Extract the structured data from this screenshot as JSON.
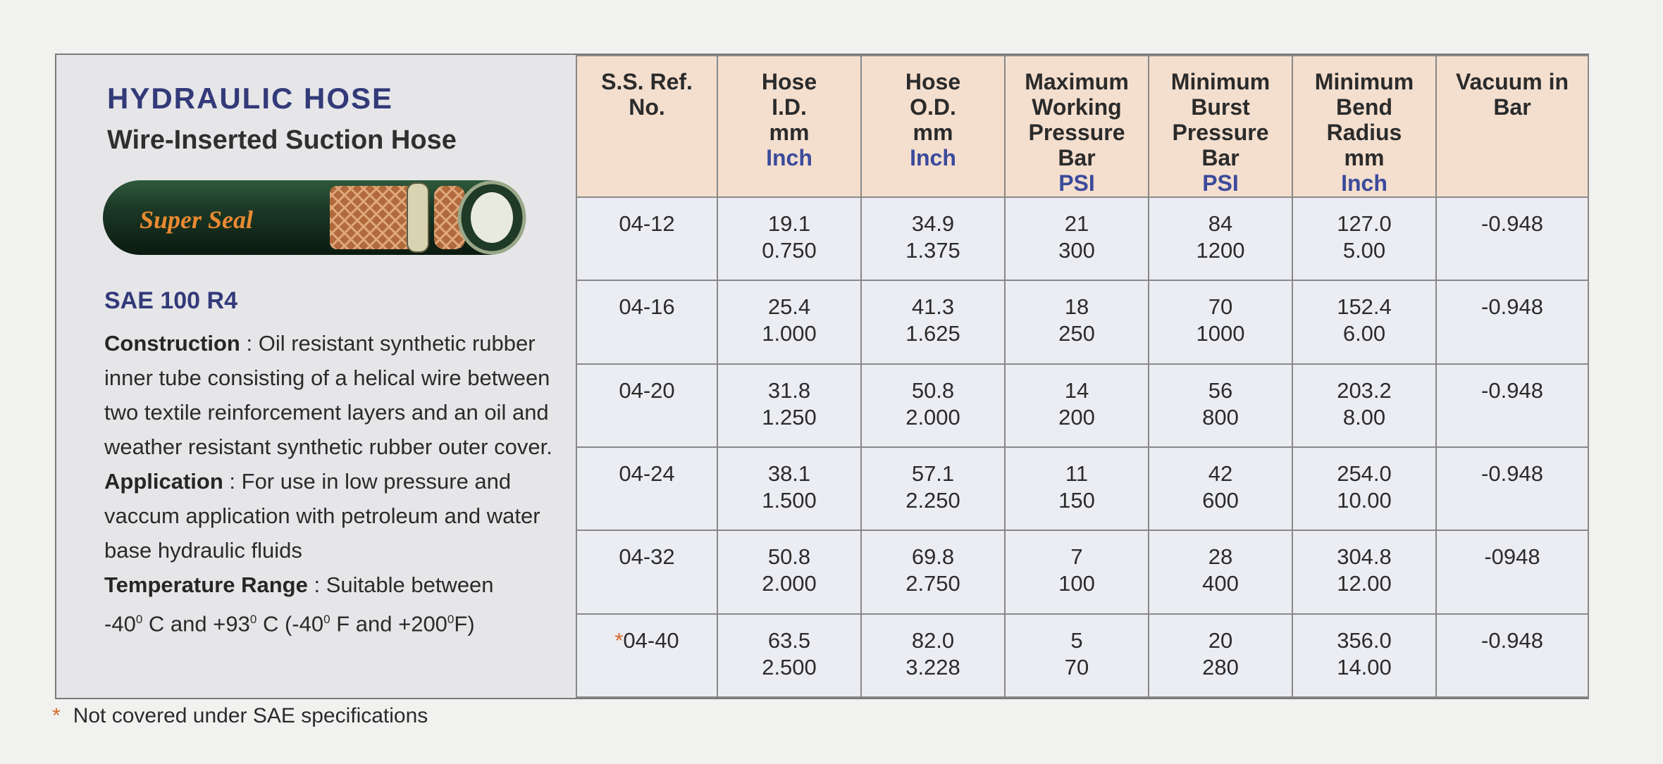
{
  "header": {
    "title": "HYDRAULIC HOSE",
    "subtitle": "Wire-Inserted Suction Hose",
    "brand": "Super Seal"
  },
  "spec": {
    "standard": "SAE 100 R4",
    "construction_label": "Construction",
    "construction_text": ": Oil resistant synthetic rubber inner tube consisting of a helical wire between two textile reinforcement layers and an oil and weather resistant synthetic rubber outer cover.",
    "application_label": "Application",
    "application_text": ": For use in low pressure and vaccum application with petroleum and water base hydraulic fluids",
    "temperature_label": "Temperature Range",
    "temperature_text": ": Suitable between",
    "temp_c_low": "-40",
    "temp_c_low_unit": "C and",
    "temp_c_high": "+93",
    "temp_c_high_unit": "C (",
    "temp_f_low": "-40",
    "temp_f_low_unit": "F and",
    "temp_f_high": "+200",
    "temp_f_high_unit": "F)",
    "degree": "0"
  },
  "table": {
    "columns": [
      {
        "line1": "S.S. Ref.",
        "line2": "No.",
        "unit": ""
      },
      {
        "line1": "Hose",
        "line2": "I.D.",
        "line3": "mm",
        "unit": "Inch"
      },
      {
        "line1": "Hose",
        "line2": "O.D.",
        "line3": "mm",
        "unit": "Inch"
      },
      {
        "line1": "Maximum",
        "line2": "Working",
        "line3": "Pressure",
        "line4": "Bar",
        "unit": "PSI"
      },
      {
        "line1": "Minimum",
        "line2": "Burst",
        "line3": "Pressure",
        "line4": "Bar",
        "unit": "PSI"
      },
      {
        "line1": "Minimum",
        "line2": "Bend",
        "line3": "Radius",
        "line4": "mm",
        "unit": "Inch"
      },
      {
        "line1": "Vacuum in",
        "line2": "Bar",
        "unit": ""
      }
    ],
    "rows": [
      {
        "ref": "04-12",
        "star": "",
        "id_mm": "19.1",
        "id_in": "0.750",
        "od_mm": "34.9",
        "od_in": "1.375",
        "wp_bar": "21",
        "wp_psi": "300",
        "bp_bar": "84",
        "bp_psi": "1200",
        "br_mm": "127.0",
        "br_in": "5.00",
        "vac": "-0.948"
      },
      {
        "ref": "04-16",
        "star": "",
        "id_mm": "25.4",
        "id_in": "1.000",
        "od_mm": "41.3",
        "od_in": "1.625",
        "wp_bar": "18",
        "wp_psi": "250",
        "bp_bar": "70",
        "bp_psi": "1000",
        "br_mm": "152.4",
        "br_in": "6.00",
        "vac": "-0.948"
      },
      {
        "ref": "04-20",
        "star": "",
        "id_mm": "31.8",
        "id_in": "1.250",
        "od_mm": "50.8",
        "od_in": "2.000",
        "wp_bar": "14",
        "wp_psi": "200",
        "bp_bar": "56",
        "bp_psi": "800",
        "br_mm": "203.2",
        "br_in": "8.00",
        "vac": "-0.948"
      },
      {
        "ref": "04-24",
        "star": "",
        "id_mm": "38.1",
        "id_in": "1.500",
        "od_mm": "57.1",
        "od_in": "2.250",
        "wp_bar": "11",
        "wp_psi": "150",
        "bp_bar": "42",
        "bp_psi": "600",
        "br_mm": "254.0",
        "br_in": "10.00",
        "vac": "-0.948"
      },
      {
        "ref": "04-32",
        "star": "",
        "id_mm": "50.8",
        "id_in": "2.000",
        "od_mm": "69.8",
        "od_in": "2.750",
        "wp_bar": "7",
        "wp_psi": "100",
        "bp_bar": "28",
        "bp_psi": "400",
        "br_mm": "304.8",
        "br_in": "12.00",
        "vac": "-0948"
      },
      {
        "ref": "04-40",
        "star": "*",
        "id_mm": "63.5",
        "id_in": "2.500",
        "od_mm": "82.0",
        "od_in": "3.228",
        "wp_bar": "5",
        "wp_psi": "70",
        "bp_bar": "20",
        "bp_psi": "280",
        "br_mm": "356.0",
        "br_in": "14.00",
        "vac": "-0.948"
      }
    ]
  },
  "footnote": {
    "star": "*",
    "text": "Not covered under SAE specifications"
  },
  "colors": {
    "title_blue": "#333a79",
    "unit_blue": "#3b4a9b",
    "header_bg": "#f4dfcf",
    "star_orange": "#d46a2a"
  }
}
